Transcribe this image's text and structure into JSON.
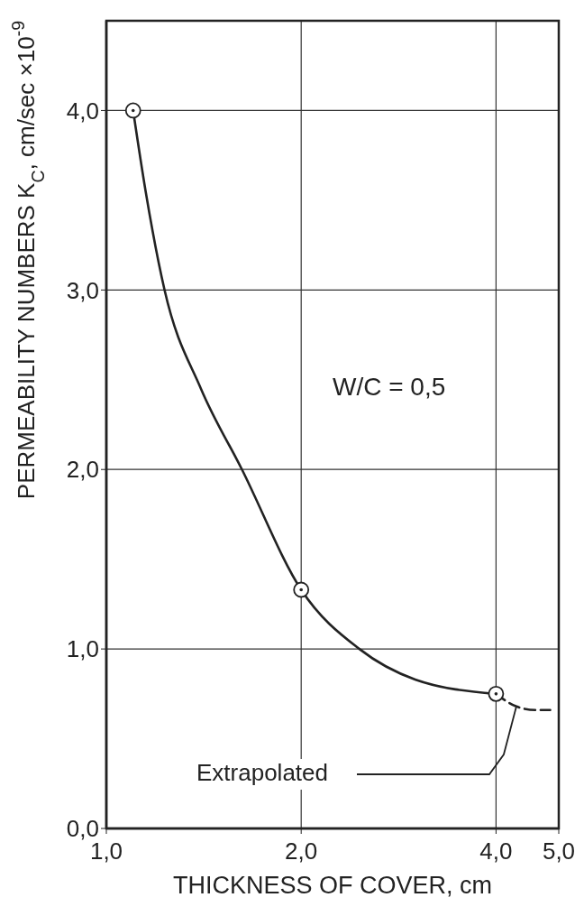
{
  "chart_data": {
    "type": "line",
    "xlabel": "THICKNESS OF COVER, cm",
    "ylabel": "PERMEABILITY NUMBERS K$_{C}$, cm/sec ×10$^{-9}$",
    "log": "x",
    "grid": true,
    "xlim": [
      1,
      5
    ],
    "xticks": [
      {
        "value": 1,
        "label": "1,0"
      },
      {
        "value": 2,
        "label": "2,0"
      },
      {
        "value": 4,
        "label": "4,0"
      },
      {
        "value": 5,
        "label": "5,0"
      }
    ],
    "ylim": [
      0,
      4.5
    ],
    "yticks": [
      {
        "value": 0,
        "label": "0,0"
      },
      {
        "value": 1,
        "label": "1,0"
      },
      {
        "value": 2,
        "label": "2,0"
      },
      {
        "value": 3,
        "label": "3,0"
      },
      {
        "value": 4,
        "label": "4,0"
      }
    ],
    "series": [
      {
        "color": "#222222",
        "line_style": "solid",
        "marker": "none",
        "x": [
          1.1,
          1.15,
          1.23,
          1.4,
          1.62,
          2.0,
          2.46,
          3.0,
          4.0
        ],
        "values": [
          4.0,
          3.55,
          3.0,
          2.45,
          2.0,
          1.33,
          1.0,
          0.83,
          0.75
        ]
      },
      {
        "color": "#222222",
        "line_style": "dashed",
        "marker": "none",
        "x": [
          4.0,
          4.3,
          4.6,
          4.85
        ],
        "values": [
          0.75,
          0.68,
          0.66,
          0.66
        ]
      },
      {
        "type": "scatter",
        "color": "#222222",
        "marker": "circle",
        "x": [
          1.1,
          2.0,
          4.0
        ],
        "values": [
          4.0,
          1.33,
          0.75
        ]
      }
    ],
    "annotations": [
      {
        "text": "W/C = 0,5"
      },
      {
        "text": "Extrapolated",
        "x": 4.3,
        "y": 0.68
      }
    ]
  }
}
